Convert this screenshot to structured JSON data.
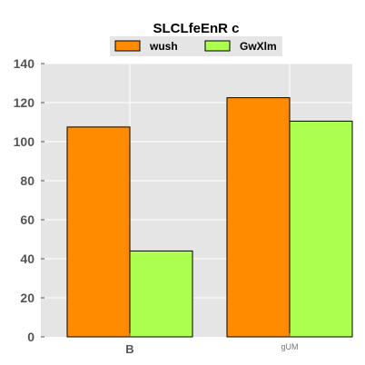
{
  "chart_data": {
    "type": "bar",
    "title": "SLCLfeEnR c",
    "categories": [
      "B",
      "gUM"
    ],
    "series": [
      {
        "name": "wush",
        "values": [
          107.5,
          122.5
        ],
        "color": "#ff8c00"
      },
      {
        "name": "GwXlm",
        "values": [
          44,
          110.5
        ],
        "color": "#adff4f"
      }
    ],
    "ylim": [
      0,
      140
    ],
    "yticks": [
      0,
      20,
      40,
      60,
      80,
      100,
      120,
      140
    ],
    "xlabel": "",
    "ylabel": "",
    "grid": true,
    "legend_position": "top-center",
    "plot_background": "#e5e5e5"
  }
}
